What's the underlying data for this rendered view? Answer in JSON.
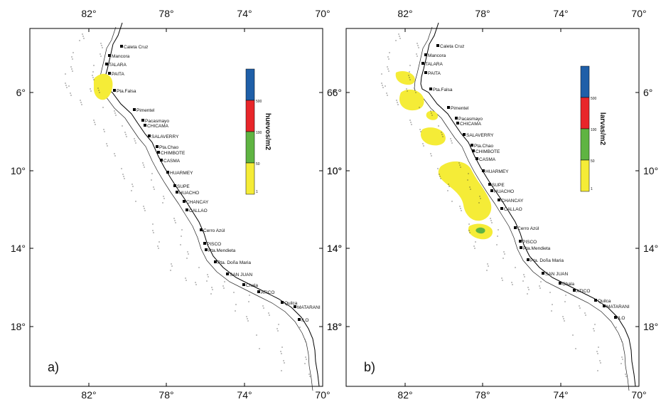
{
  "maps": [
    {
      "id": "a",
      "panel_label": "a)",
      "legend_title": "huevos/m2",
      "legend": [
        {
          "label": "500",
          "color": "#1f5fa8"
        },
        {
          "label": "100",
          "color": "#e8262a"
        },
        {
          "label": "50",
          "color": "#5fb442"
        },
        {
          "label": "1",
          "color": "#f5ec37"
        }
      ],
      "lon_ticks": [
        "82°",
        "78°",
        "74°",
        "70°"
      ],
      "lat_ticks": [
        "6°",
        "10°",
        "14°",
        "18°"
      ],
      "places": [
        "Caleta Cruz",
        "Mancora",
        "TALARA",
        "PAITA",
        "Pta.Falsa",
        "Pimentel",
        "Pacasmayo",
        "CHICAMA",
        "SALAVERRY",
        "Pta.Chao",
        "CHIMBOTE",
        "CASMA",
        "HUARMEY",
        "SUPE",
        "HUACHO",
        "CHANCAY",
        "CALLAO",
        "Cerro Azúl",
        "PISCO",
        "Pta.Mendieta",
        "Pta. Doña Maria",
        "SAN JUAN",
        "Chala",
        "ATICO",
        "Quilca",
        "MATARANI",
        "ILO"
      ]
    },
    {
      "id": "b",
      "panel_label": "b)",
      "legend_title": "larvas/m2",
      "legend": [
        {
          "label": "500",
          "color": "#1f5fa8"
        },
        {
          "label": "100",
          "color": "#e8262a"
        },
        {
          "label": "50",
          "color": "#5fb442"
        },
        {
          "label": "1",
          "color": "#f5ec37"
        }
      ],
      "lon_ticks": [
        "82°",
        "78°",
        "74°",
        "70°"
      ],
      "lat_ticks": [
        "6°",
        "10°",
        "14°",
        "18°"
      ],
      "places": [
        "Caleta Cruz",
        "Mancora",
        "TALARA",
        "PAITA",
        "Pta.Falsa",
        "Pimentel",
        "Pacasmayo",
        "CHICAMA",
        "SALAVERRY",
        "Pta.Chao",
        "CHIMBOTE",
        "CASMA",
        "HUARMEY",
        "SUPE",
        "HUACHO",
        "CHANCAY",
        "CALLAO",
        "Cerro Azúl",
        "PISCO",
        "Pta.Mendieta",
        "Pta. Doña Maria",
        "SAN JUAN",
        "Chala",
        "ATICO",
        "Quilca",
        "MATARANI",
        "ILO"
      ]
    }
  ]
}
